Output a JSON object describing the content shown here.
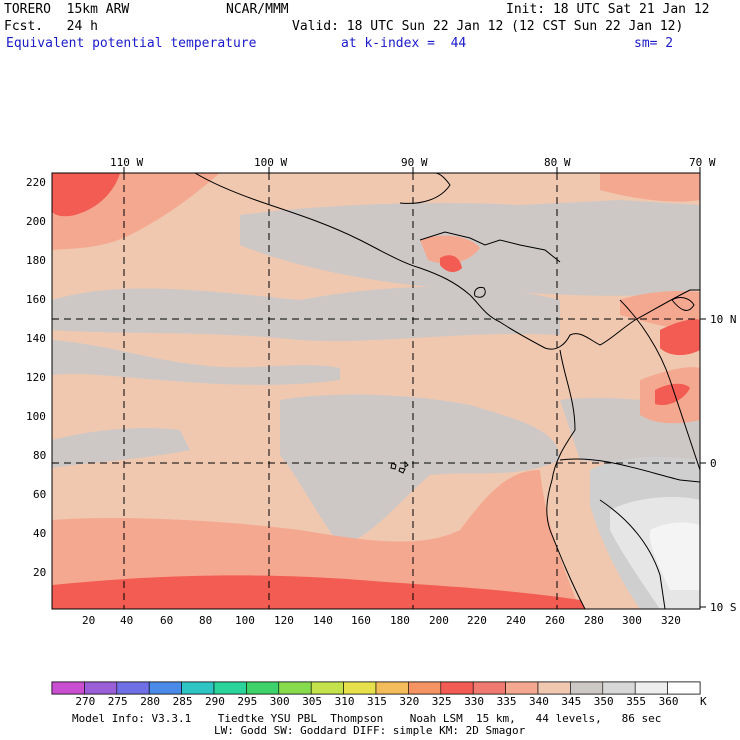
{
  "header": {
    "model": "TORERO  15km ARW",
    "org": "NCAR/MMM",
    "init": "Init: 18 UTC Sat 21 Jan 12",
    "fcst": "Fcst.   24 h",
    "valid": "Valid: 18 UTC Sun 22 Jan 12 (12 CST Sun 22 Jan 12)",
    "field": "Equivalent potential temperature",
    "level": "at k-index =  44",
    "smooth": "sm= 2"
  },
  "map": {
    "lon_labels": [
      "110 W",
      "100 W",
      "90 W",
      "80 W",
      "70 W"
    ],
    "lat_labels": [
      "10 N",
      "0",
      "10 S"
    ],
    "y_ticks": [
      "220",
      "200",
      "180",
      "160",
      "140",
      "120",
      "100",
      "80",
      "60",
      "40",
      "20"
    ],
    "x_ticks": [
      "20",
      "40",
      "60",
      "80",
      "100",
      "120",
      "140",
      "160",
      "180",
      "200",
      "220",
      "240",
      "260",
      "280",
      "300",
      "320"
    ]
  },
  "colorbar": {
    "labels": [
      "270",
      "275",
      "280",
      "285",
      "290",
      "295",
      "300",
      "305",
      "310",
      "315",
      "320",
      "325",
      "330",
      "335",
      "340",
      "345",
      "350",
      "355",
      "360"
    ],
    "unit": "K",
    "colors": [
      "#c94fd0",
      "#9a5fd8",
      "#7070e6",
      "#4a8ae8",
      "#2ec4c4",
      "#2bd49a",
      "#3ed26a",
      "#86dc4c",
      "#c4e24c",
      "#e6e04c",
      "#f2bc5a",
      "#f59462",
      "#f25c52",
      "#f07a70",
      "#f5a890",
      "#f0c8b0",
      "#cdc8c6",
      "#d8d8d8",
      "#eeeeee",
      "#ffffff"
    ]
  },
  "footer": {
    "line1": "Model Info: V3.3.1    Tiedtke YSU PBL  Thompson    Noah LSM  15 km,   44 levels,   86 sec",
    "line2": "LW: Godd SW: Goddard DIFF: simple KM: 2D Smagor"
  }
}
